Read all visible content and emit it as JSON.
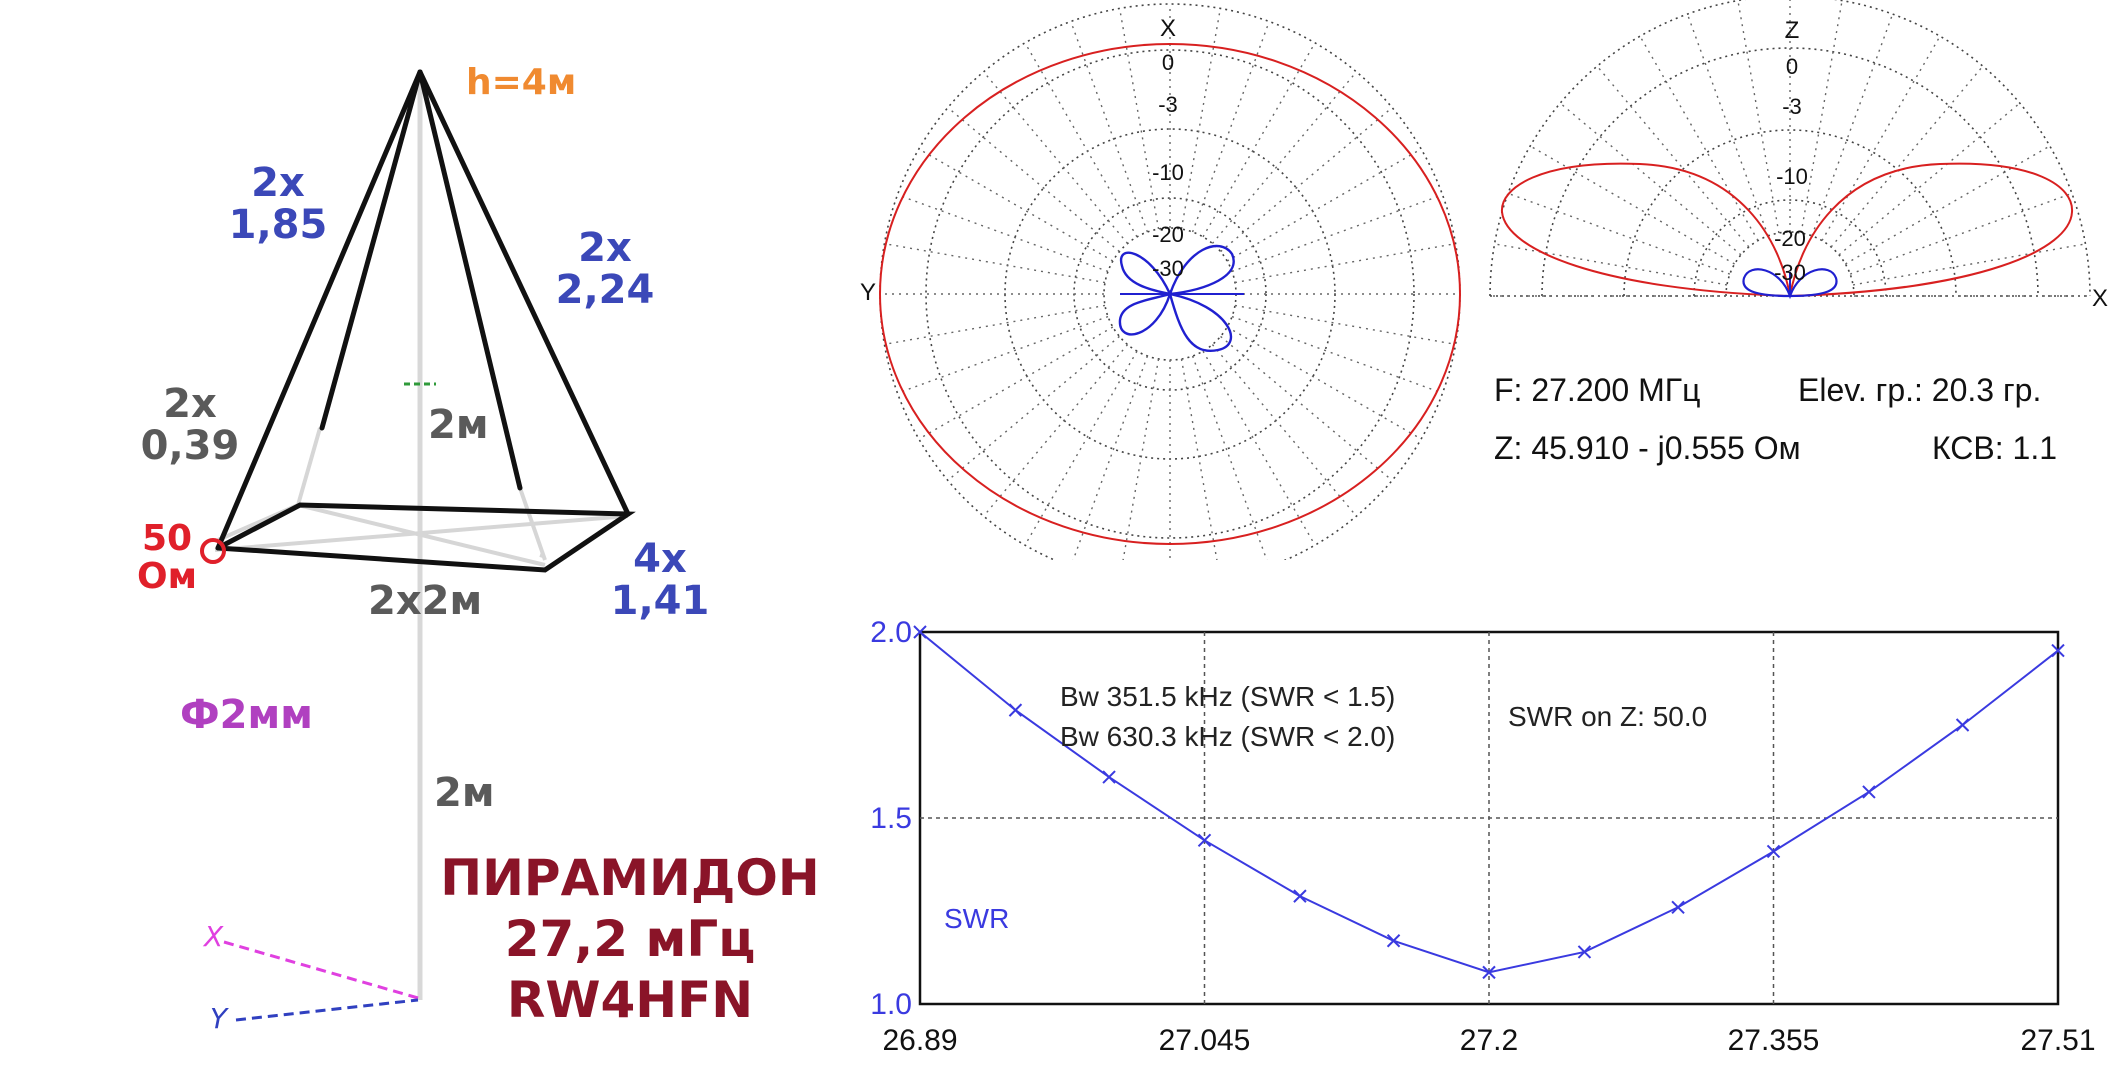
{
  "pyramid": {
    "height_label": "h=4м",
    "wire_top_left": [
      "2х",
      "1,85"
    ],
    "wire_top_right": [
      "2х",
      "2,24"
    ],
    "wire_lower_left": [
      "2х",
      "0,39"
    ],
    "mast_upper": "2м",
    "feed": [
      "50",
      "Ом"
    ],
    "base": "2х2м",
    "base_wires": [
      "4х",
      "1,41"
    ],
    "wire_diameter": "Ф2мм",
    "mast_lower": "2м",
    "title_lines": [
      "ПИРАМИДОН",
      "27,2 мГц",
      "RW4HFN"
    ],
    "axis_x": "X",
    "axis_y": "Y"
  },
  "polar_horizontal": {
    "axis_top": "X",
    "axis_left": "Y",
    "rings": [
      "0",
      "-3",
      "-10",
      "-20",
      "-30"
    ]
  },
  "polar_vertical": {
    "axis_top": "Z",
    "axis_right": "X",
    "rings": [
      "0",
      "-3",
      "-10",
      "-20",
      "-30"
    ]
  },
  "readout": {
    "freq": "F: 27.200 МГц",
    "elev": "Elev. гр.: 20.3 гр.",
    "impedance": "Z: 45.910 - j0.555 Ом",
    "swr": "КСВ: 1.1"
  },
  "colors": {
    "wire_blue": "#3b48b8",
    "dim_grey": "#5a5a5a",
    "feed_red": "#e0202a",
    "height_orange": "#f08a30",
    "diameter_purple": "#b040c0",
    "title_maroon": "#8a1428",
    "pattern_red": "#d82020",
    "pattern_blue": "#2020d0",
    "swr_line": "#3a3ae0"
  },
  "chart_data": {
    "type": "line",
    "x_ticks": [
      "26.89",
      "27.045",
      "27.2",
      "27.355",
      "27.51"
    ],
    "y_ticks": [
      "2.0",
      "1.5",
      "1.0"
    ],
    "xlim": [
      26.89,
      27.51
    ],
    "ylim": [
      1.0,
      2.0
    ],
    "series": [
      {
        "name": "SWR",
        "x": [
          26.89,
          26.942,
          26.993,
          27.045,
          27.097,
          27.148,
          27.2,
          27.252,
          27.303,
          27.355,
          27.407,
          27.458,
          27.51
        ],
        "y": [
          2.0,
          1.79,
          1.61,
          1.44,
          1.29,
          1.17,
          1.085,
          1.14,
          1.26,
          1.41,
          1.57,
          1.75,
          1.95
        ]
      }
    ],
    "annotations": [
      "Bw 351.5 kHz (SWR < 1.5)",
      "Bw 630.3 kHz (SWR < 2.0)",
      "SWR on Z: 50.0"
    ],
    "grid": true
  }
}
